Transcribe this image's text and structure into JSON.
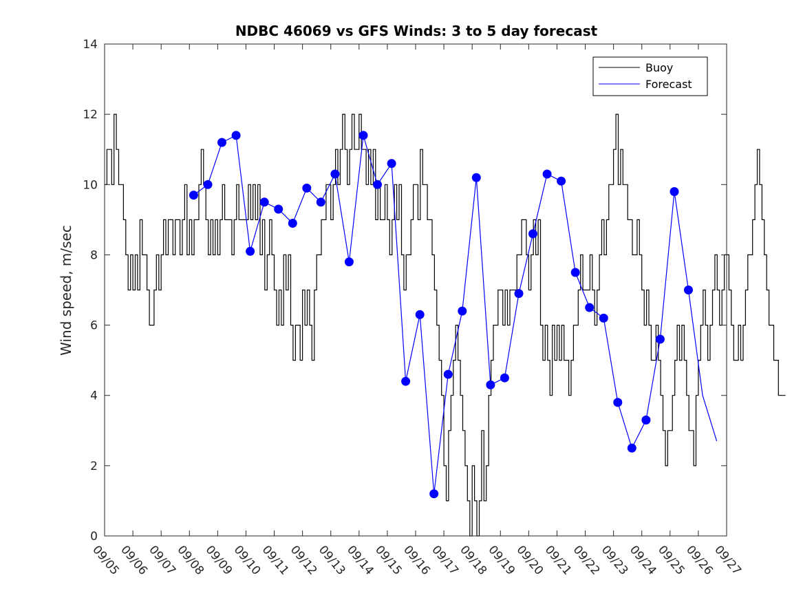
{
  "chart_data": {
    "type": "line",
    "title": "NDBC 46069 vs GFS Winds: 3 to 5 day forecast",
    "xlabel": "",
    "ylabel": "Wind speed, m/sec",
    "xlim": [
      0,
      22
    ],
    "ylim": [
      0,
      14
    ],
    "x_tick_labels": [
      "09/05",
      "09/06",
      "09/07",
      "09/08",
      "09/09",
      "09/10",
      "09/11",
      "09/12",
      "09/13",
      "09/14",
      "09/15",
      "09/16",
      "09/17",
      "09/18",
      "09/19",
      "09/20",
      "09/21",
      "09/22",
      "09/23",
      "09/24",
      "09/25",
      "09/26",
      "09/27"
    ],
    "y_ticks": [
      0,
      2,
      4,
      6,
      8,
      10,
      12,
      14
    ],
    "legend": {
      "position": "top-right",
      "entries": [
        "Buoy",
        "Forecast"
      ]
    },
    "colors": {
      "buoy": "#000000",
      "forecast": "#0000ff"
    },
    "series": [
      {
        "name": "Buoy",
        "x_start_day": 0,
        "step_hours": 2,
        "values": [
          10,
          11,
          11,
          10,
          12,
          11,
          10,
          10,
          9,
          8,
          7,
          8,
          7,
          8,
          7,
          9,
          8,
          8,
          7,
          6,
          6,
          7,
          8,
          7,
          8,
          9,
          8,
          9,
          9,
          8,
          9,
          9,
          8,
          9,
          10,
          8,
          9,
          8,
          9,
          9,
          10,
          11,
          10,
          9,
          8,
          9,
          8,
          9,
          8,
          9,
          10,
          9,
          9,
          9,
          8,
          9,
          10,
          9,
          9,
          9,
          9,
          10,
          9,
          10,
          9,
          10,
          8,
          9,
          7,
          8,
          9,
          8,
          7,
          6,
          7,
          6,
          8,
          7,
          8,
          6,
          5,
          6,
          6,
          5,
          7,
          6,
          7,
          6,
          5,
          7,
          8,
          8,
          9,
          9,
          10,
          10,
          9,
          10,
          11,
          10,
          11,
          12,
          11,
          10,
          11,
          12,
          11,
          11,
          12,
          11,
          11,
          10,
          11,
          10,
          11,
          9,
          10,
          9,
          9,
          10,
          9,
          8,
          9,
          10,
          9,
          10,
          8,
          7,
          8,
          8,
          9,
          10,
          10,
          9,
          11,
          10,
          10,
          9,
          9,
          8,
          7,
          6,
          5,
          4,
          2,
          1,
          3,
          4,
          5,
          6,
          5,
          4,
          3,
          2,
          1,
          0,
          2,
          1,
          0,
          1,
          3,
          1,
          2,
          4,
          5,
          6,
          6,
          7,
          7,
          6,
          7,
          6,
          7,
          7,
          7,
          8,
          8,
          9,
          9,
          8,
          7,
          8,
          9,
          8,
          9,
          6,
          5,
          6,
          5,
          4,
          6,
          5,
          6,
          5,
          6,
          5,
          5,
          4,
          5,
          6,
          6,
          7,
          8,
          7,
          7,
          7,
          8,
          7,
          6,
          7,
          8,
          9,
          8,
          9,
          10,
          10,
          11,
          12,
          10,
          11,
          10,
          10,
          9,
          9,
          8,
          8,
          9,
          8,
          7,
          6,
          7,
          6,
          5,
          5,
          6,
          5,
          4,
          3,
          2,
          3,
          3,
          4,
          5,
          6,
          5,
          6,
          5,
          4,
          3,
          3,
          2,
          4,
          5,
          6,
          7,
          6,
          5,
          6,
          7,
          8,
          7,
          6,
          7,
          8,
          8,
          7,
          6,
          5,
          5,
          6,
          5,
          6,
          7,
          8,
          8,
          9,
          10,
          11,
          10,
          9,
          8,
          7,
          6,
          6,
          5,
          5,
          4,
          4,
          4
        ]
      },
      {
        "name": "Forecast",
        "x": [
          3.15,
          3.65,
          4.15,
          4.65,
          5.15,
          5.65,
          6.15,
          6.65,
          7.15,
          7.65,
          8.15,
          8.65,
          9.15,
          9.65,
          10.15,
          10.65,
          11.15,
          11.65,
          12.15,
          12.65,
          13.15,
          13.65,
          14.15,
          14.65,
          15.15,
          15.65,
          16.15,
          16.65,
          17.15,
          17.65,
          18.15,
          18.65,
          19.15,
          19.65,
          20.15,
          20.65,
          21.15,
          21.65
        ],
        "values": [
          9.7,
          10.0,
          11.2,
          11.4,
          8.1,
          9.5,
          9.3,
          8.9,
          9.9,
          9.5,
          10.3,
          7.8,
          11.4,
          10.0,
          10.6,
          4.4,
          6.3,
          1.2,
          4.6,
          6.4,
          10.2,
          4.3,
          4.5,
          6.9,
          8.6,
          10.3,
          10.1,
          7.5,
          6.5,
          6.2,
          3.8,
          2.5,
          3.3,
          5.6,
          9.8,
          7.0,
          4.0,
          2.7
        ],
        "markers_x": [
          3.15,
          3.65,
          4.15,
          4.65,
          5.15,
          5.65,
          6.15,
          6.65,
          7.15,
          7.65,
          8.15,
          8.65,
          9.15,
          9.65,
          10.15,
          10.65,
          11.15,
          11.65,
          12.15,
          12.65,
          13.15,
          13.65,
          14.15,
          14.65,
          15.15,
          15.65,
          16.15,
          16.65,
          17.15,
          17.65,
          18.15,
          18.65,
          19.15,
          19.65,
          20.15,
          20.65
        ],
        "markers_y": [
          9.7,
          10.0,
          11.2,
          11.4,
          8.1,
          9.5,
          9.3,
          8.9,
          9.9,
          9.5,
          10.3,
          7.8,
          11.4,
          10.0,
          10.6,
          4.4,
          6.3,
          1.2,
          4.6,
          6.4,
          10.2,
          4.3,
          4.5,
          6.9,
          8.6,
          10.3,
          10.1,
          7.5,
          6.5,
          6.2,
          3.8,
          2.5,
          3.3,
          5.6,
          9.8,
          7.0
        ]
      }
    ]
  }
}
